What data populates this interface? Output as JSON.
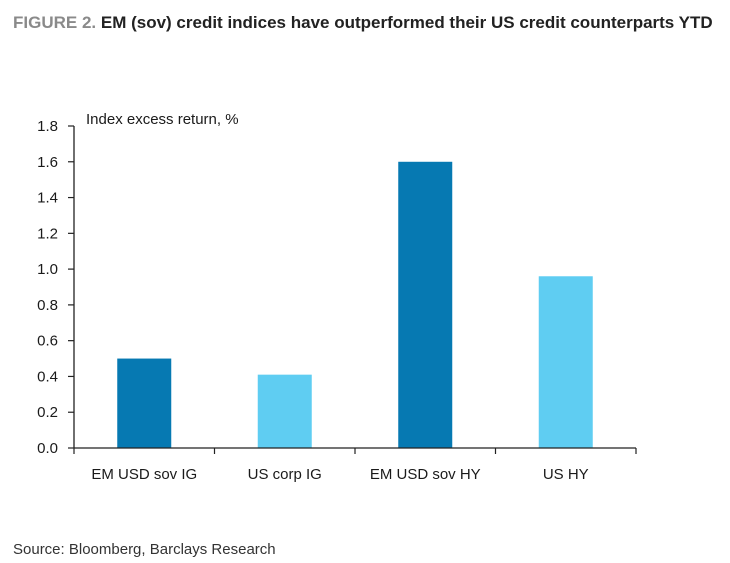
{
  "title": {
    "figure_label": "FIGURE 2.",
    "text": "EM (sov) credit indices have outperformed their US credit counterparts YTD"
  },
  "source": "Source: Bloomberg, Barclays Research",
  "colors": {
    "dark_blue": "#0679b2",
    "light_blue": "#5fcdf2",
    "axis": "#222222",
    "figure_label": "#8a8a8a"
  },
  "chart_data": {
    "type": "bar",
    "ylabel": "Index excess return, %",
    "xlabel": "",
    "ylim": [
      0,
      1.8
    ],
    "yticks": [
      "0.0",
      "0.2",
      "0.4",
      "0.6",
      "0.8",
      "1.0",
      "1.2",
      "1.4",
      "1.6",
      "1.8"
    ],
    "grid": false,
    "categories": [
      "EM USD sov IG",
      "US corp IG",
      "EM USD sov HY",
      "US HY"
    ],
    "values": [
      0.5,
      0.41,
      1.6,
      0.96
    ],
    "bar_colors": [
      "#0679b2",
      "#5fcdf2",
      "#0679b2",
      "#5fcdf2"
    ]
  }
}
